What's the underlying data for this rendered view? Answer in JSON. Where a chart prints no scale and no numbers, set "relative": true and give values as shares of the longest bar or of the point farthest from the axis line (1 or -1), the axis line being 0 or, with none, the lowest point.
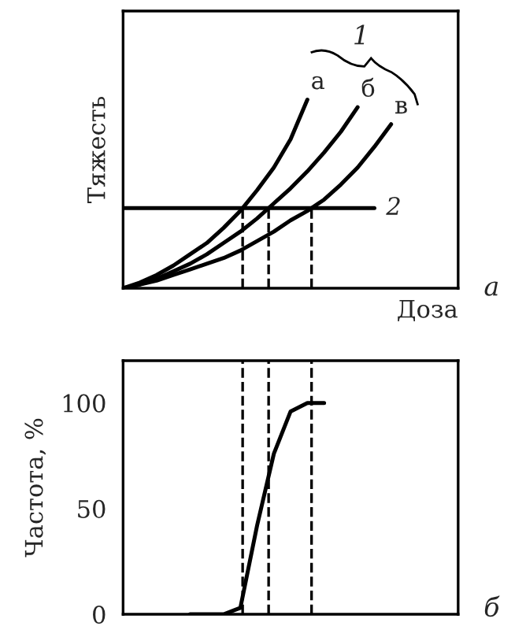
{
  "chart_data": [
    {
      "type": "line",
      "relative": true,
      "ylabel": "Тяжесть",
      "xlabel": "Доза",
      "tick_labels": false,
      "grid": false,
      "legend": false,
      "line_style": "solid",
      "marker": "none",
      "categories": [
        null,
        null,
        null,
        null,
        null,
        null,
        null,
        null,
        null,
        null,
        null,
        null,
        null,
        null,
        null,
        null,
        null,
        null,
        null,
        null,
        null
      ],
      "series": [
        {
          "name": "а",
          "color": "#000000",
          "values": [
            0,
            0.03,
            0.07,
            0.12,
            0.18,
            0.24,
            0.32,
            0.41,
            0.52,
            0.64,
            0.79,
            1.0,
            null,
            null,
            null,
            null,
            null,
            null,
            null,
            null,
            null
          ]
        },
        {
          "name": "б",
          "color": "#000000",
          "values": [
            0,
            0.02,
            0.05,
            0.09,
            0.13,
            0.18,
            0.24,
            0.3,
            0.37,
            0.45,
            0.53,
            0.62,
            0.72,
            0.83,
            0.96,
            null,
            null,
            null,
            null,
            null,
            null
          ]
        },
        {
          "name": "в",
          "color": "#000000",
          "values": [
            0,
            0.02,
            0.04,
            0.07,
            0.1,
            0.13,
            0.16,
            0.2,
            0.25,
            0.3,
            0.36,
            0.41,
            0.47,
            0.55,
            0.64,
            0.75,
            0.87,
            null,
            null,
            null,
            null
          ]
        },
        {
          "name": "2",
          "color": "#000000",
          "values": [
            0.425,
            0.425,
            0.425,
            0.425,
            0.425,
            0.425,
            0.425,
            0.425,
            0.425,
            0.425,
            0.425,
            0.425,
            0.425,
            0.425,
            0.425,
            0.425,
            null,
            null,
            null,
            null,
            null
          ]
        }
      ],
      "annotations": [
        "1",
        "а"
      ]
    },
    {
      "type": "line",
      "ylabel": "Частота, %",
      "tick_labels": "y",
      "grid": false,
      "legend": false,
      "line_style": "solid",
      "marker": "none",
      "categories": [
        null,
        null,
        null,
        null,
        null,
        null,
        null,
        null,
        null,
        null,
        null,
        null,
        null,
        null,
        null,
        null,
        null,
        null,
        null,
        null,
        null
      ],
      "series": [
        {
          "color": "#000000",
          "values": [
            null,
            null,
            null,
            null,
            0,
            0,
            0,
            3,
            42,
            76,
            96,
            100,
            100,
            null,
            null,
            null,
            null,
            null,
            null,
            null,
            null
          ]
        }
      ],
      "ylim": [
        0,
        120
      ],
      "yticks": [
        0,
        50,
        100
      ],
      "annotations": [
        "б"
      ]
    }
  ]
}
